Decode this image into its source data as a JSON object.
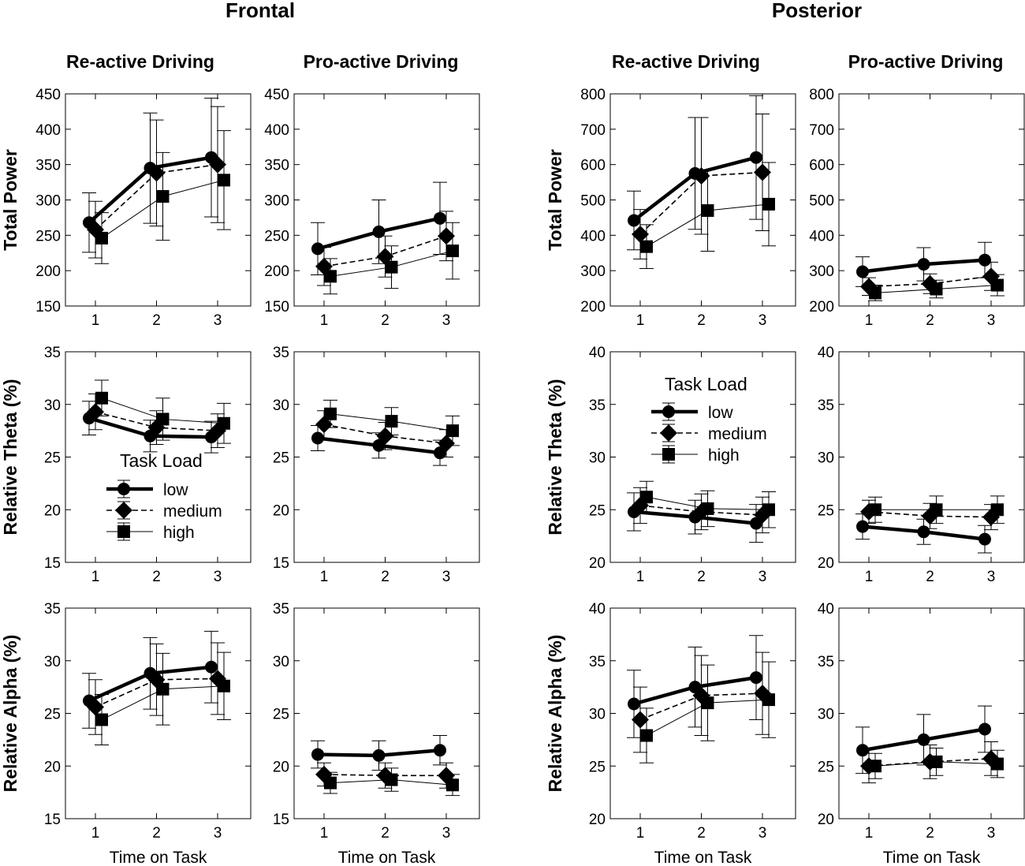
{
  "figure": {
    "groups": [
      "Frontal",
      "Posterior"
    ],
    "columns": [
      "Re-active Driving",
      "Pro-active Driving",
      "Re-active Driving",
      "Pro-active Driving"
    ],
    "row_ylabels": [
      "Total Power",
      "Relative Theta  (%)",
      "Relative Alpha  (%)"
    ],
    "xlabel": "Time on Task",
    "legend": {
      "title": "Task Load",
      "entries": [
        "low",
        "medium",
        "high"
      ]
    },
    "colors": {
      "line": "#000000",
      "background": "#ffffff"
    }
  },
  "chart_data": [
    {
      "type": "line",
      "id": "r0c0",
      "row": 0,
      "col": 0,
      "title": "Frontal – Re-active Driving",
      "xlabel": "",
      "ylabel": "Total Power",
      "x": [
        1,
        2,
        3
      ],
      "ylim": [
        150,
        450
      ],
      "yticks": [
        150,
        200,
        250,
        300,
        350,
        400,
        450
      ],
      "series": [
        {
          "name": "low",
          "values": [
            268,
            345,
            360
          ],
          "err": [
            42,
            78,
            84
          ]
        },
        {
          "name": "medium",
          "values": [
            258,
            338,
            350
          ],
          "err": [
            40,
            75,
            82
          ]
        },
        {
          "name": "high",
          "values": [
            246,
            305,
            328
          ],
          "err": [
            36,
            62,
            70
          ]
        }
      ]
    },
    {
      "type": "line",
      "id": "r0c1",
      "row": 0,
      "col": 1,
      "title": "Frontal – Pro-active Driving",
      "xlabel": "",
      "ylabel": "",
      "x": [
        1,
        2,
        3
      ],
      "ylim": [
        150,
        450
      ],
      "yticks": [
        150,
        200,
        250,
        300,
        350,
        400,
        450
      ],
      "series": [
        {
          "name": "low",
          "values": [
            231,
            255,
            274
          ],
          "err": [
            37,
            45,
            51
          ]
        },
        {
          "name": "medium",
          "values": [
            206,
            220,
            249
          ],
          "err": [
            27,
            29,
            35
          ]
        },
        {
          "name": "high",
          "values": [
            192,
            205,
            228
          ],
          "err": [
            25,
            30,
            40
          ]
        }
      ]
    },
    {
      "type": "line",
      "id": "r0c2",
      "row": 0,
      "col": 2,
      "title": "Posterior – Re-active Driving",
      "xlabel": "",
      "ylabel": "Total Power",
      "x": [
        1,
        2,
        3
      ],
      "ylim": [
        200,
        800
      ],
      "yticks": [
        200,
        300,
        400,
        500,
        600,
        700,
        800
      ],
      "series": [
        {
          "name": "low",
          "values": [
            442,
            575,
            620
          ],
          "err": [
            83,
            158,
            175
          ]
        },
        {
          "name": "medium",
          "values": [
            403,
            568,
            578
          ],
          "err": [
            70,
            165,
            165
          ]
        },
        {
          "name": "high",
          "values": [
            368,
            470,
            488
          ],
          "err": [
            62,
            115,
            118
          ]
        }
      ]
    },
    {
      "type": "line",
      "id": "r0c3",
      "row": 0,
      "col": 3,
      "title": "Posterior – Pro-active Driving",
      "xlabel": "",
      "ylabel": "",
      "x": [
        1,
        2,
        3
      ],
      "ylim": [
        200,
        800
      ],
      "yticks": [
        200,
        300,
        400,
        500,
        600,
        700,
        800
      ],
      "series": [
        {
          "name": "low",
          "values": [
            297,
            318,
            330
          ],
          "err": [
            42,
            47,
            50
          ]
        },
        {
          "name": "medium",
          "values": [
            255,
            263,
            284
          ],
          "err": [
            25,
            28,
            40
          ]
        },
        {
          "name": "high",
          "values": [
            237,
            248,
            259
          ],
          "err": [
            22,
            25,
            30
          ]
        }
      ]
    },
    {
      "type": "line",
      "id": "r1c0",
      "row": 1,
      "col": 0,
      "title": "",
      "xlabel": "",
      "ylabel": "Relative Theta  (%)",
      "x": [
        1,
        2,
        3
      ],
      "ylim": [
        15,
        35
      ],
      "yticks": [
        15,
        20,
        25,
        30,
        35
      ],
      "series": [
        {
          "name": "low",
          "values": [
            28.7,
            27.0,
            26.9
          ],
          "err": [
            1.6,
            1.5,
            1.5
          ]
        },
        {
          "name": "medium",
          "values": [
            29.3,
            27.8,
            27.5
          ],
          "err": [
            1.7,
            1.6,
            1.6
          ]
        },
        {
          "name": "high",
          "values": [
            30.6,
            28.6,
            28.2
          ],
          "err": [
            1.7,
            2.0,
            1.9
          ]
        }
      ]
    },
    {
      "type": "line",
      "id": "r1c1",
      "row": 1,
      "col": 1,
      "title": "",
      "xlabel": "",
      "ylabel": "",
      "x": [
        1,
        2,
        3
      ],
      "ylim": [
        15,
        35
      ],
      "yticks": [
        15,
        20,
        25,
        30,
        35
      ],
      "series": [
        {
          "name": "low",
          "values": [
            26.8,
            26.1,
            25.4
          ],
          "err": [
            1.2,
            1.2,
            1.2
          ]
        },
        {
          "name": "medium",
          "values": [
            28.1,
            27.0,
            26.3
          ],
          "err": [
            1.3,
            1.3,
            1.3
          ]
        },
        {
          "name": "high",
          "values": [
            29.1,
            28.4,
            27.5
          ],
          "err": [
            1.3,
            1.3,
            1.4
          ]
        }
      ]
    },
    {
      "type": "line",
      "id": "r1c2",
      "row": 1,
      "col": 2,
      "title": "",
      "xlabel": "",
      "ylabel": "Relative Theta  (%)",
      "x": [
        1,
        2,
        3
      ],
      "ylim": [
        20,
        40
      ],
      "yticks": [
        20,
        25,
        30,
        35,
        40
      ],
      "series": [
        {
          "name": "low",
          "values": [
            24.8,
            24.3,
            23.7
          ],
          "err": [
            1.8,
            1.6,
            1.8
          ]
        },
        {
          "name": "medium",
          "values": [
            25.4,
            24.8,
            24.5
          ],
          "err": [
            1.7,
            1.7,
            1.7
          ]
        },
        {
          "name": "high",
          "values": [
            26.2,
            25.1,
            25.0
          ],
          "err": [
            1.5,
            1.7,
            1.7
          ]
        }
      ]
    },
    {
      "type": "line",
      "id": "r1c3",
      "row": 1,
      "col": 3,
      "title": "",
      "xlabel": "",
      "ylabel": "",
      "x": [
        1,
        2,
        3
      ],
      "ylim": [
        20,
        40
      ],
      "yticks": [
        20,
        25,
        30,
        35,
        40
      ],
      "series": [
        {
          "name": "low",
          "values": [
            23.4,
            22.9,
            22.2
          ],
          "err": [
            1.2,
            1.2,
            1.3
          ]
        },
        {
          "name": "medium",
          "values": [
            24.8,
            24.4,
            24.3
          ],
          "err": [
            1.1,
            1.2,
            1.2
          ]
        },
        {
          "name": "high",
          "values": [
            25.0,
            25.0,
            25.0
          ],
          "err": [
            1.2,
            1.3,
            1.3
          ]
        }
      ]
    },
    {
      "type": "line",
      "id": "r2c0",
      "row": 2,
      "col": 0,
      "title": "",
      "xlabel": "Time on Task",
      "ylabel": "Relative Alpha  (%)",
      "x": [
        1,
        2,
        3
      ],
      "ylim": [
        15,
        35
      ],
      "yticks": [
        15,
        20,
        25,
        30,
        35
      ],
      "series": [
        {
          "name": "low",
          "values": [
            26.2,
            28.8,
            29.4
          ],
          "err": [
            2.6,
            3.4,
            3.4
          ]
        },
        {
          "name": "medium",
          "values": [
            25.6,
            28.2,
            28.3
          ],
          "err": [
            2.6,
            3.4,
            3.4
          ]
        },
        {
          "name": "high",
          "values": [
            24.4,
            27.3,
            27.6
          ],
          "err": [
            2.4,
            3.4,
            3.2
          ]
        }
      ]
    },
    {
      "type": "line",
      "id": "r2c1",
      "row": 2,
      "col": 1,
      "title": "",
      "xlabel": "Time on Task",
      "ylabel": "",
      "x": [
        1,
        2,
        3
      ],
      "ylim": [
        15,
        35
      ],
      "yticks": [
        15,
        20,
        25,
        30,
        35
      ],
      "series": [
        {
          "name": "low",
          "values": [
            21.1,
            21.0,
            21.5
          ],
          "err": [
            1.3,
            1.4,
            1.4
          ]
        },
        {
          "name": "medium",
          "values": [
            19.2,
            19.1,
            19.1
          ],
          "err": [
            1.1,
            1.2,
            1.2
          ]
        },
        {
          "name": "high",
          "values": [
            18.4,
            18.7,
            18.2
          ],
          "err": [
            1.0,
            1.1,
            1.0
          ]
        }
      ]
    },
    {
      "type": "line",
      "id": "r2c2",
      "row": 2,
      "col": 2,
      "title": "",
      "xlabel": "Time on Task",
      "ylabel": "Relative Alpha  (%)",
      "x": [
        1,
        2,
        3
      ],
      "ylim": [
        20,
        40
      ],
      "yticks": [
        20,
        25,
        30,
        35,
        40
      ],
      "series": [
        {
          "name": "low",
          "values": [
            30.9,
            32.5,
            33.4
          ],
          "err": [
            3.2,
            3.8,
            4.0
          ]
        },
        {
          "name": "medium",
          "values": [
            29.4,
            31.7,
            31.9
          ],
          "err": [
            3.1,
            3.8,
            3.9
          ]
        },
        {
          "name": "high",
          "values": [
            27.9,
            31.0,
            31.3
          ],
          "err": [
            2.6,
            3.6,
            3.6
          ]
        }
      ]
    },
    {
      "type": "line",
      "id": "r2c3",
      "row": 2,
      "col": 3,
      "title": "",
      "xlabel": "Time on Task",
      "ylabel": "",
      "x": [
        1,
        2,
        3
      ],
      "ylim": [
        20,
        40
      ],
      "yticks": [
        20,
        25,
        30,
        35,
        40
      ],
      "series": [
        {
          "name": "low",
          "values": [
            26.5,
            27.5,
            28.5
          ],
          "err": [
            2.2,
            2.4,
            2.2
          ]
        },
        {
          "name": "medium",
          "values": [
            25.0,
            25.4,
            25.7
          ],
          "err": [
            1.6,
            1.6,
            1.6
          ]
        },
        {
          "name": "high",
          "values": [
            25.0,
            25.4,
            25.2
          ],
          "err": [
            1.2,
            1.3,
            1.3
          ]
        }
      ]
    }
  ]
}
